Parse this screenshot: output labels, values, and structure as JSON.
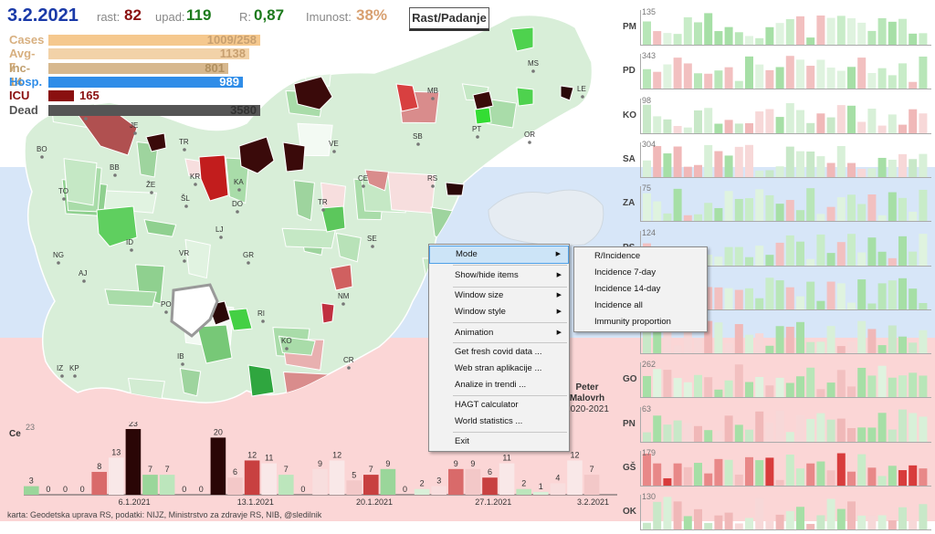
{
  "header": {
    "date": "3.2.2021",
    "rast_label": "rast:",
    "rast_value": "82",
    "upad_label": "upad:",
    "upad_value": "119",
    "r_label": "R:",
    "r_value": "0,87",
    "imunost_label": "Imunost:",
    "imunost_value": "38%",
    "toggle_button": "Rast/Padanje"
  },
  "stats": [
    {
      "label": "Cases",
      "value": "1009/258",
      "fill": 1.0,
      "color": "#f5c88e"
    },
    {
      "label": "Avg-7",
      "value": "1138",
      "fill": 0.95,
      "color": "#f2d2a8"
    },
    {
      "label": "Inc-14",
      "value": "801",
      "fill": 0.85,
      "color": "#d7b88e"
    },
    {
      "label": "Hosp.",
      "value": "989",
      "fill": 0.92,
      "color": "#2f8de8"
    },
    {
      "label": "ICU",
      "value": "165",
      "fill": 0.12,
      "color": "#8a1010"
    },
    {
      "label": "Dead",
      "value": "3580",
      "fill": 1.0,
      "color": "#555555"
    }
  ],
  "map_labels": [
    "KG",
    "JE",
    "BO",
    "BB",
    "TR",
    "KR",
    "ŽE",
    "ŠL",
    "TO",
    "KA",
    "DO",
    "LJ",
    "ID",
    "VR",
    "GR",
    "AJ",
    "NG",
    "SE",
    "PO",
    "RI",
    "IB",
    "KO",
    "IZ",
    "KP",
    "CR",
    "NM",
    "TR",
    "VE",
    "MB",
    "SB",
    "CE",
    "RS",
    "PT",
    "OR",
    "MS",
    "LE"
  ],
  "right_charts": [
    {
      "region": "PM",
      "max": "135",
      "tone": "green"
    },
    {
      "region": "PD",
      "max": "343",
      "tone": "green"
    },
    {
      "region": "KO",
      "max": "98",
      "tone": "mixed"
    },
    {
      "region": "SA",
      "max": "304",
      "tone": "mixed"
    },
    {
      "region": "ZA",
      "max": "75",
      "tone": "green"
    },
    {
      "region": "PS",
      "max": "124",
      "tone": "green"
    },
    {
      "region": "",
      "max": "",
      "tone": "green"
    },
    {
      "region": "",
      "max": "",
      "tone": "mixed"
    },
    {
      "region": "GO",
      "max": "262",
      "tone": "green"
    },
    {
      "region": "PN",
      "max": "63",
      "tone": "mixed"
    },
    {
      "region": "GŠ",
      "max": "179",
      "tone": "red"
    },
    {
      "region": "OK",
      "max": "130",
      "tone": "mixed"
    }
  ],
  "chart_data": {
    "type": "bar",
    "ylabel": "Ce",
    "ymax_label": "23",
    "values": [
      3,
      0,
      0,
      0,
      8,
      13,
      23,
      7,
      7,
      0,
      0,
      20,
      6,
      12,
      11,
      7,
      0,
      9,
      12,
      5,
      7,
      9,
      0,
      2,
      3,
      9,
      9,
      6,
      11,
      2,
      1,
      4,
      12,
      7
    ],
    "x_tick_labels": [
      "6.1.2021",
      "13.1.2021",
      "20.1.2021",
      "27.1.2021",
      "3.2.2021"
    ]
  },
  "menu": {
    "items": [
      "Mode",
      "Show/hide items",
      "Window size",
      "Window style",
      "Animation",
      "Get fresh covid data ...",
      "Web stran aplikacije ...",
      "Analize in trendi ...",
      "HAGT calculator",
      "World statistics ...",
      "Exit"
    ]
  },
  "submenu": {
    "items": [
      "R/Incidence",
      "Incidence 7-day",
      "Incidence 14-day",
      "Incidence all",
      "Immunity proportion"
    ]
  },
  "author": {
    "line1": "Peter",
    "line2": "Malovrh",
    "line3": "2020-2021"
  },
  "credit": "karta: Geodetska uprava RS,  podatki: NIJZ, Ministrstvo za zdravje RS, NIB, @sledilnik",
  "colors": {
    "accent_blue": "#1a3aa8",
    "grow_red": "#8a1010",
    "drop_green": "#1c7a1c"
  }
}
